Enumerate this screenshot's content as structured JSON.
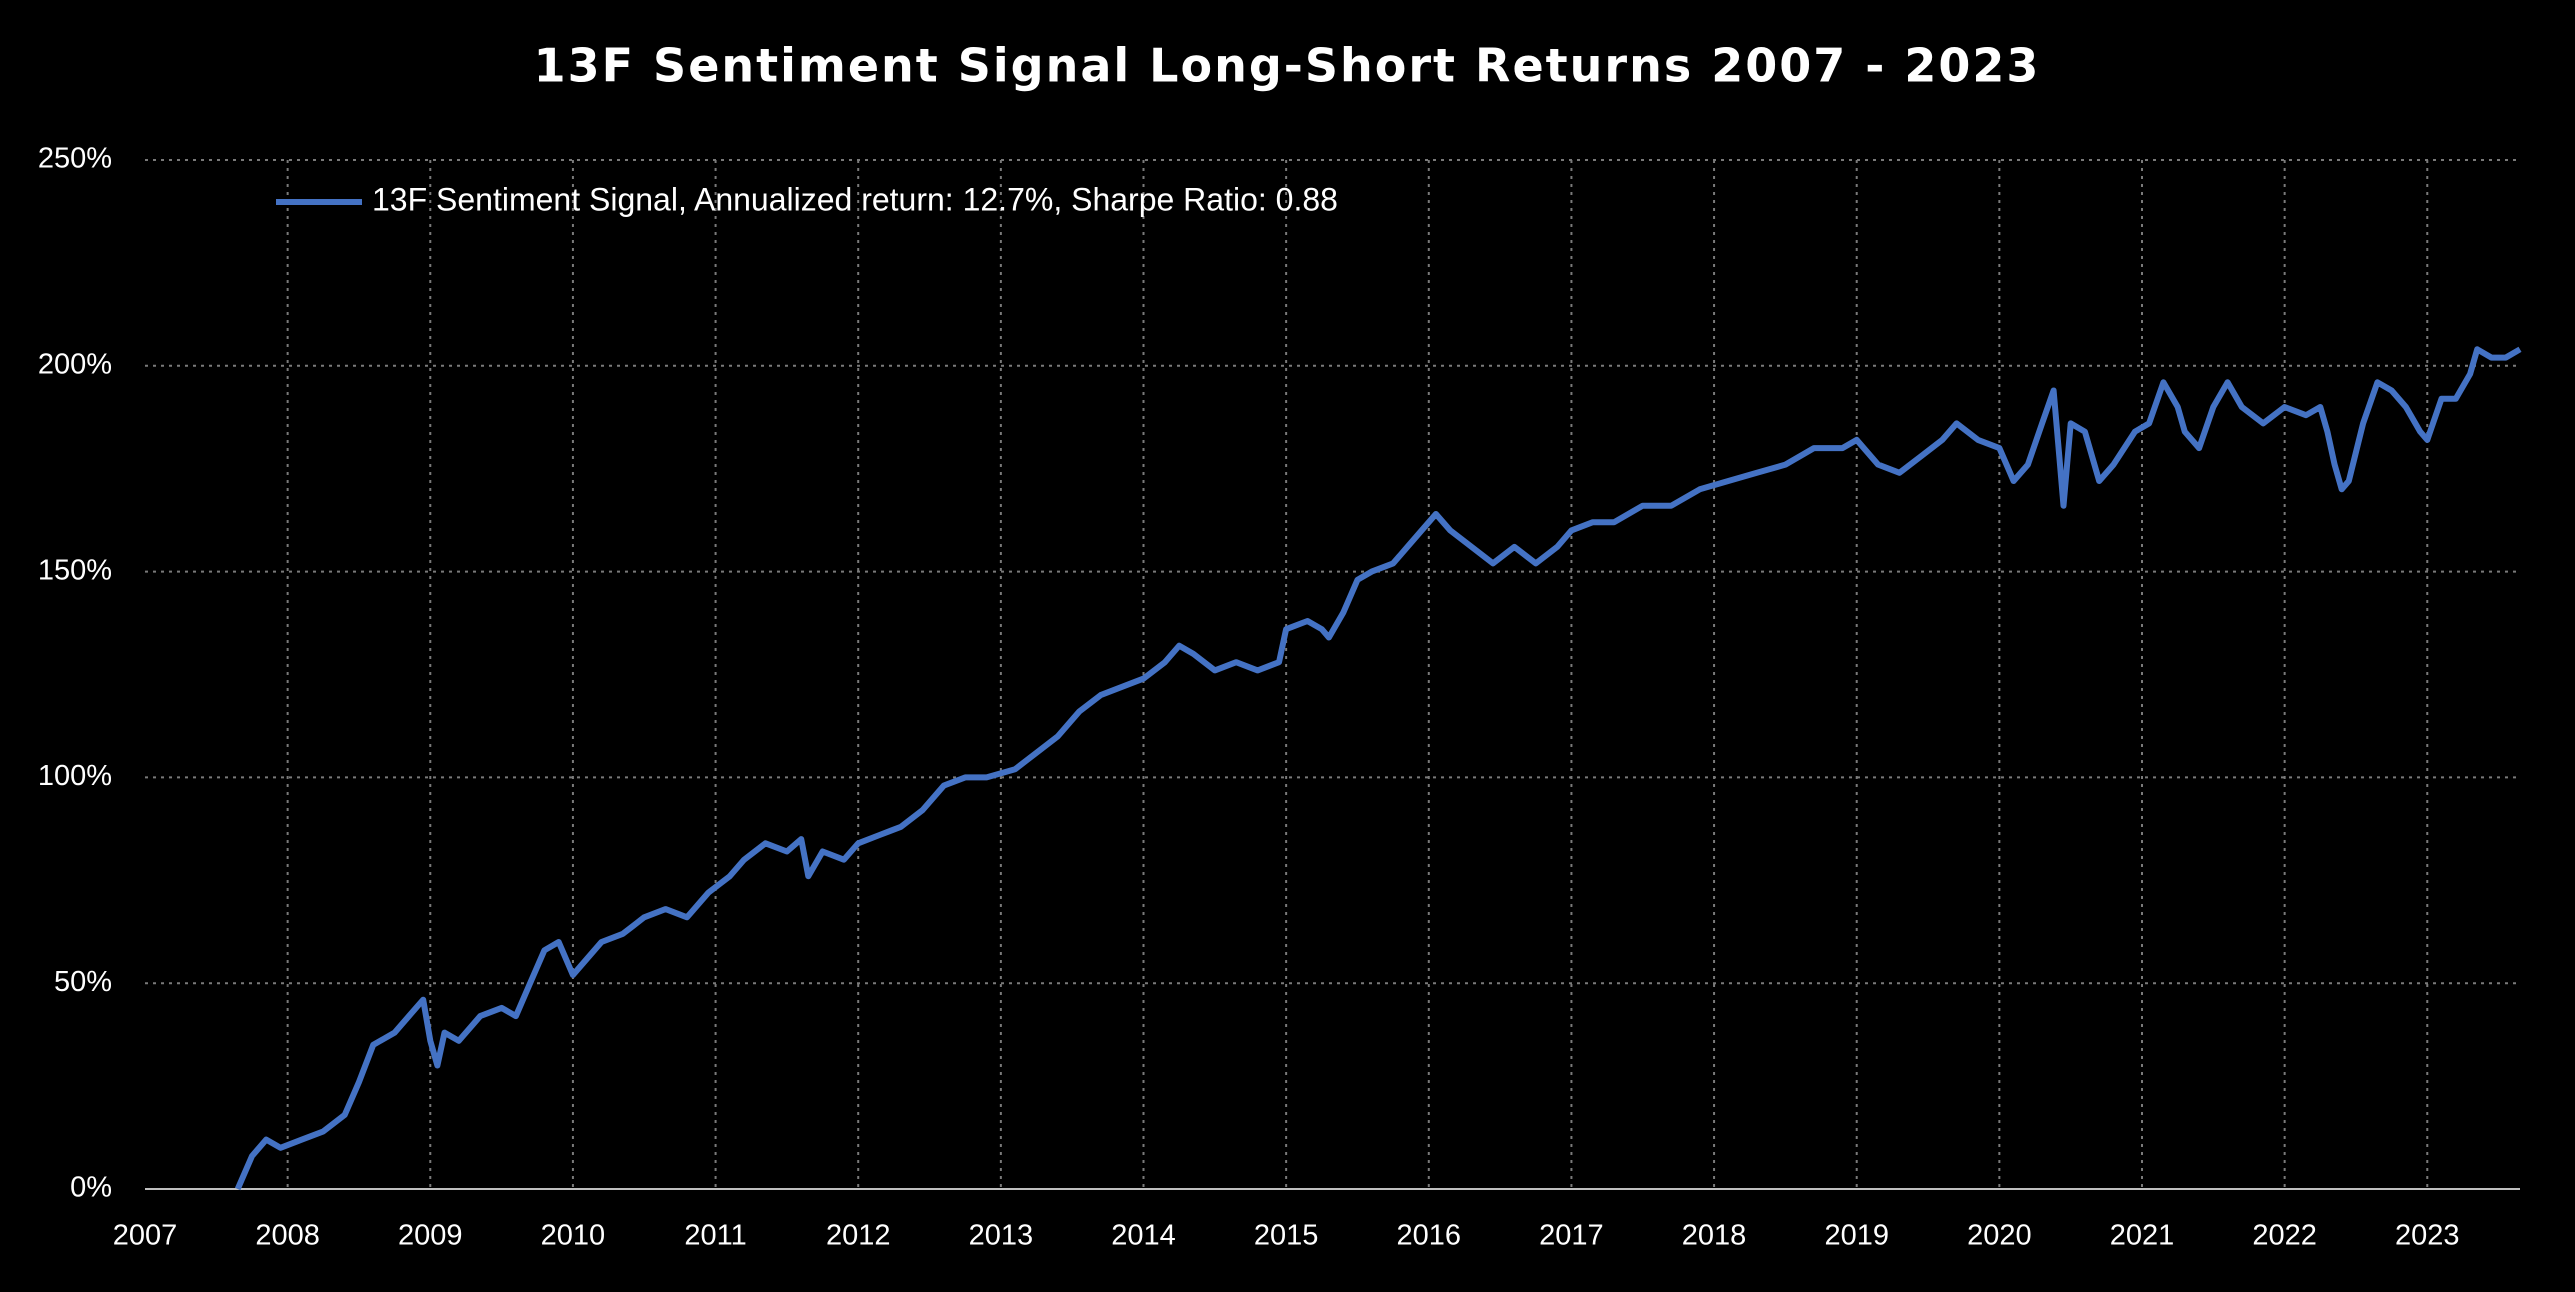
{
  "chart_data": {
    "type": "line",
    "title": "13F Sentiment Signal Long-Short Returns 2007 - 2023",
    "x": [
      2007.65,
      2007.75,
      2007.85,
      2007.95,
      2008.1,
      2008.25,
      2008.4,
      2008.5,
      2008.6,
      2008.75,
      2008.85,
      2008.95,
      2009.0,
      2009.05,
      2009.1,
      2009.2,
      2009.35,
      2009.5,
      2009.6,
      2009.7,
      2009.8,
      2009.9,
      2010.0,
      2010.1,
      2010.2,
      2010.35,
      2010.5,
      2010.65,
      2010.8,
      2010.95,
      2011.1,
      2011.2,
      2011.35,
      2011.5,
      2011.6,
      2011.65,
      2011.75,
      2011.9,
      2012.0,
      2012.15,
      2012.3,
      2012.45,
      2012.6,
      2012.75,
      2012.9,
      2013.1,
      2013.25,
      2013.4,
      2013.55,
      2013.7,
      2013.85,
      2014.0,
      2014.15,
      2014.25,
      2014.35,
      2014.5,
      2014.65,
      2014.8,
      2014.95,
      2015.0,
      2015.15,
      2015.25,
      2015.3,
      2015.4,
      2015.5,
      2015.6,
      2015.75,
      2015.85,
      2015.95,
      2016.05,
      2016.15,
      2016.3,
      2016.45,
      2016.6,
      2016.75,
      2016.9,
      2017.0,
      2017.15,
      2017.3,
      2017.5,
      2017.7,
      2017.9,
      2018.1,
      2018.3,
      2018.5,
      2018.7,
      2018.9,
      2019.0,
      2019.15,
      2019.3,
      2019.45,
      2019.6,
      2019.7,
      2019.85,
      2020.0,
      2020.1,
      2020.2,
      2020.3,
      2020.38,
      2020.42,
      2020.45,
      2020.5,
      2020.6,
      2020.7,
      2020.8,
      2020.95,
      2021.05,
      2021.15,
      2021.25,
      2021.3,
      2021.4,
      2021.5,
      2021.6,
      2021.7,
      2021.85,
      2022.0,
      2022.15,
      2022.25,
      2022.3,
      2022.35,
      2022.4,
      2022.45,
      2022.55,
      2022.65,
      2022.75,
      2022.85,
      2022.95,
      2023.0,
      2023.1,
      2023.2,
      2023.3,
      2023.35,
      2023.45,
      2023.55,
      2023.65
    ],
    "series": [
      {
        "name": "13F Sentiment Signal, Annualized return: 12.7%, Sharpe Ratio: 0.88",
        "color": "#4472c4",
        "values": [
          0,
          8,
          12,
          10,
          12,
          14,
          18,
          26,
          35,
          38,
          42,
          46,
          36,
          30,
          38,
          36,
          42,
          44,
          42,
          50,
          58,
          60,
          52,
          56,
          60,
          62,
          66,
          68,
          66,
          72,
          76,
          80,
          84,
          82,
          85,
          76,
          82,
          80,
          84,
          86,
          88,
          92,
          98,
          100,
          100,
          102,
          106,
          110,
          116,
          120,
          122,
          124,
          128,
          132,
          130,
          126,
          128,
          126,
          128,
          136,
          138,
          136,
          134,
          140,
          148,
          150,
          152,
          156,
          160,
          164,
          160,
          156,
          152,
          156,
          152,
          156,
          160,
          162,
          162,
          166,
          166,
          170,
          172,
          174,
          176,
          180,
          180,
          182,
          176,
          174,
          178,
          182,
          186,
          182,
          180,
          172,
          176,
          186,
          194,
          178,
          166,
          186,
          184,
          172,
          176,
          184,
          186,
          196,
          190,
          184,
          180,
          190,
          196,
          190,
          186,
          190,
          188,
          190,
          184,
          176,
          170,
          172,
          186,
          196,
          194,
          190,
          184,
          182,
          192,
          192,
          198,
          204,
          202,
          202,
          204
        ]
      }
    ],
    "xlim": [
      2007,
      2023.65
    ],
    "xticks": [
      2007,
      2008,
      2009,
      2010,
      2011,
      2012,
      2013,
      2014,
      2015,
      2016,
      2017,
      2018,
      2019,
      2020,
      2021,
      2022,
      2023
    ],
    "ylim": [
      0,
      250
    ],
    "yticks": [
      {
        "value": 0,
        "label": "0%"
      },
      {
        "value": 50,
        "label": "50%"
      },
      {
        "value": 100,
        "label": "100%"
      },
      {
        "value": 150,
        "label": "150%"
      },
      {
        "value": 200,
        "label": "200%"
      },
      {
        "value": 250,
        "label": "250%"
      }
    ],
    "grid": true,
    "legend": "top-left"
  }
}
